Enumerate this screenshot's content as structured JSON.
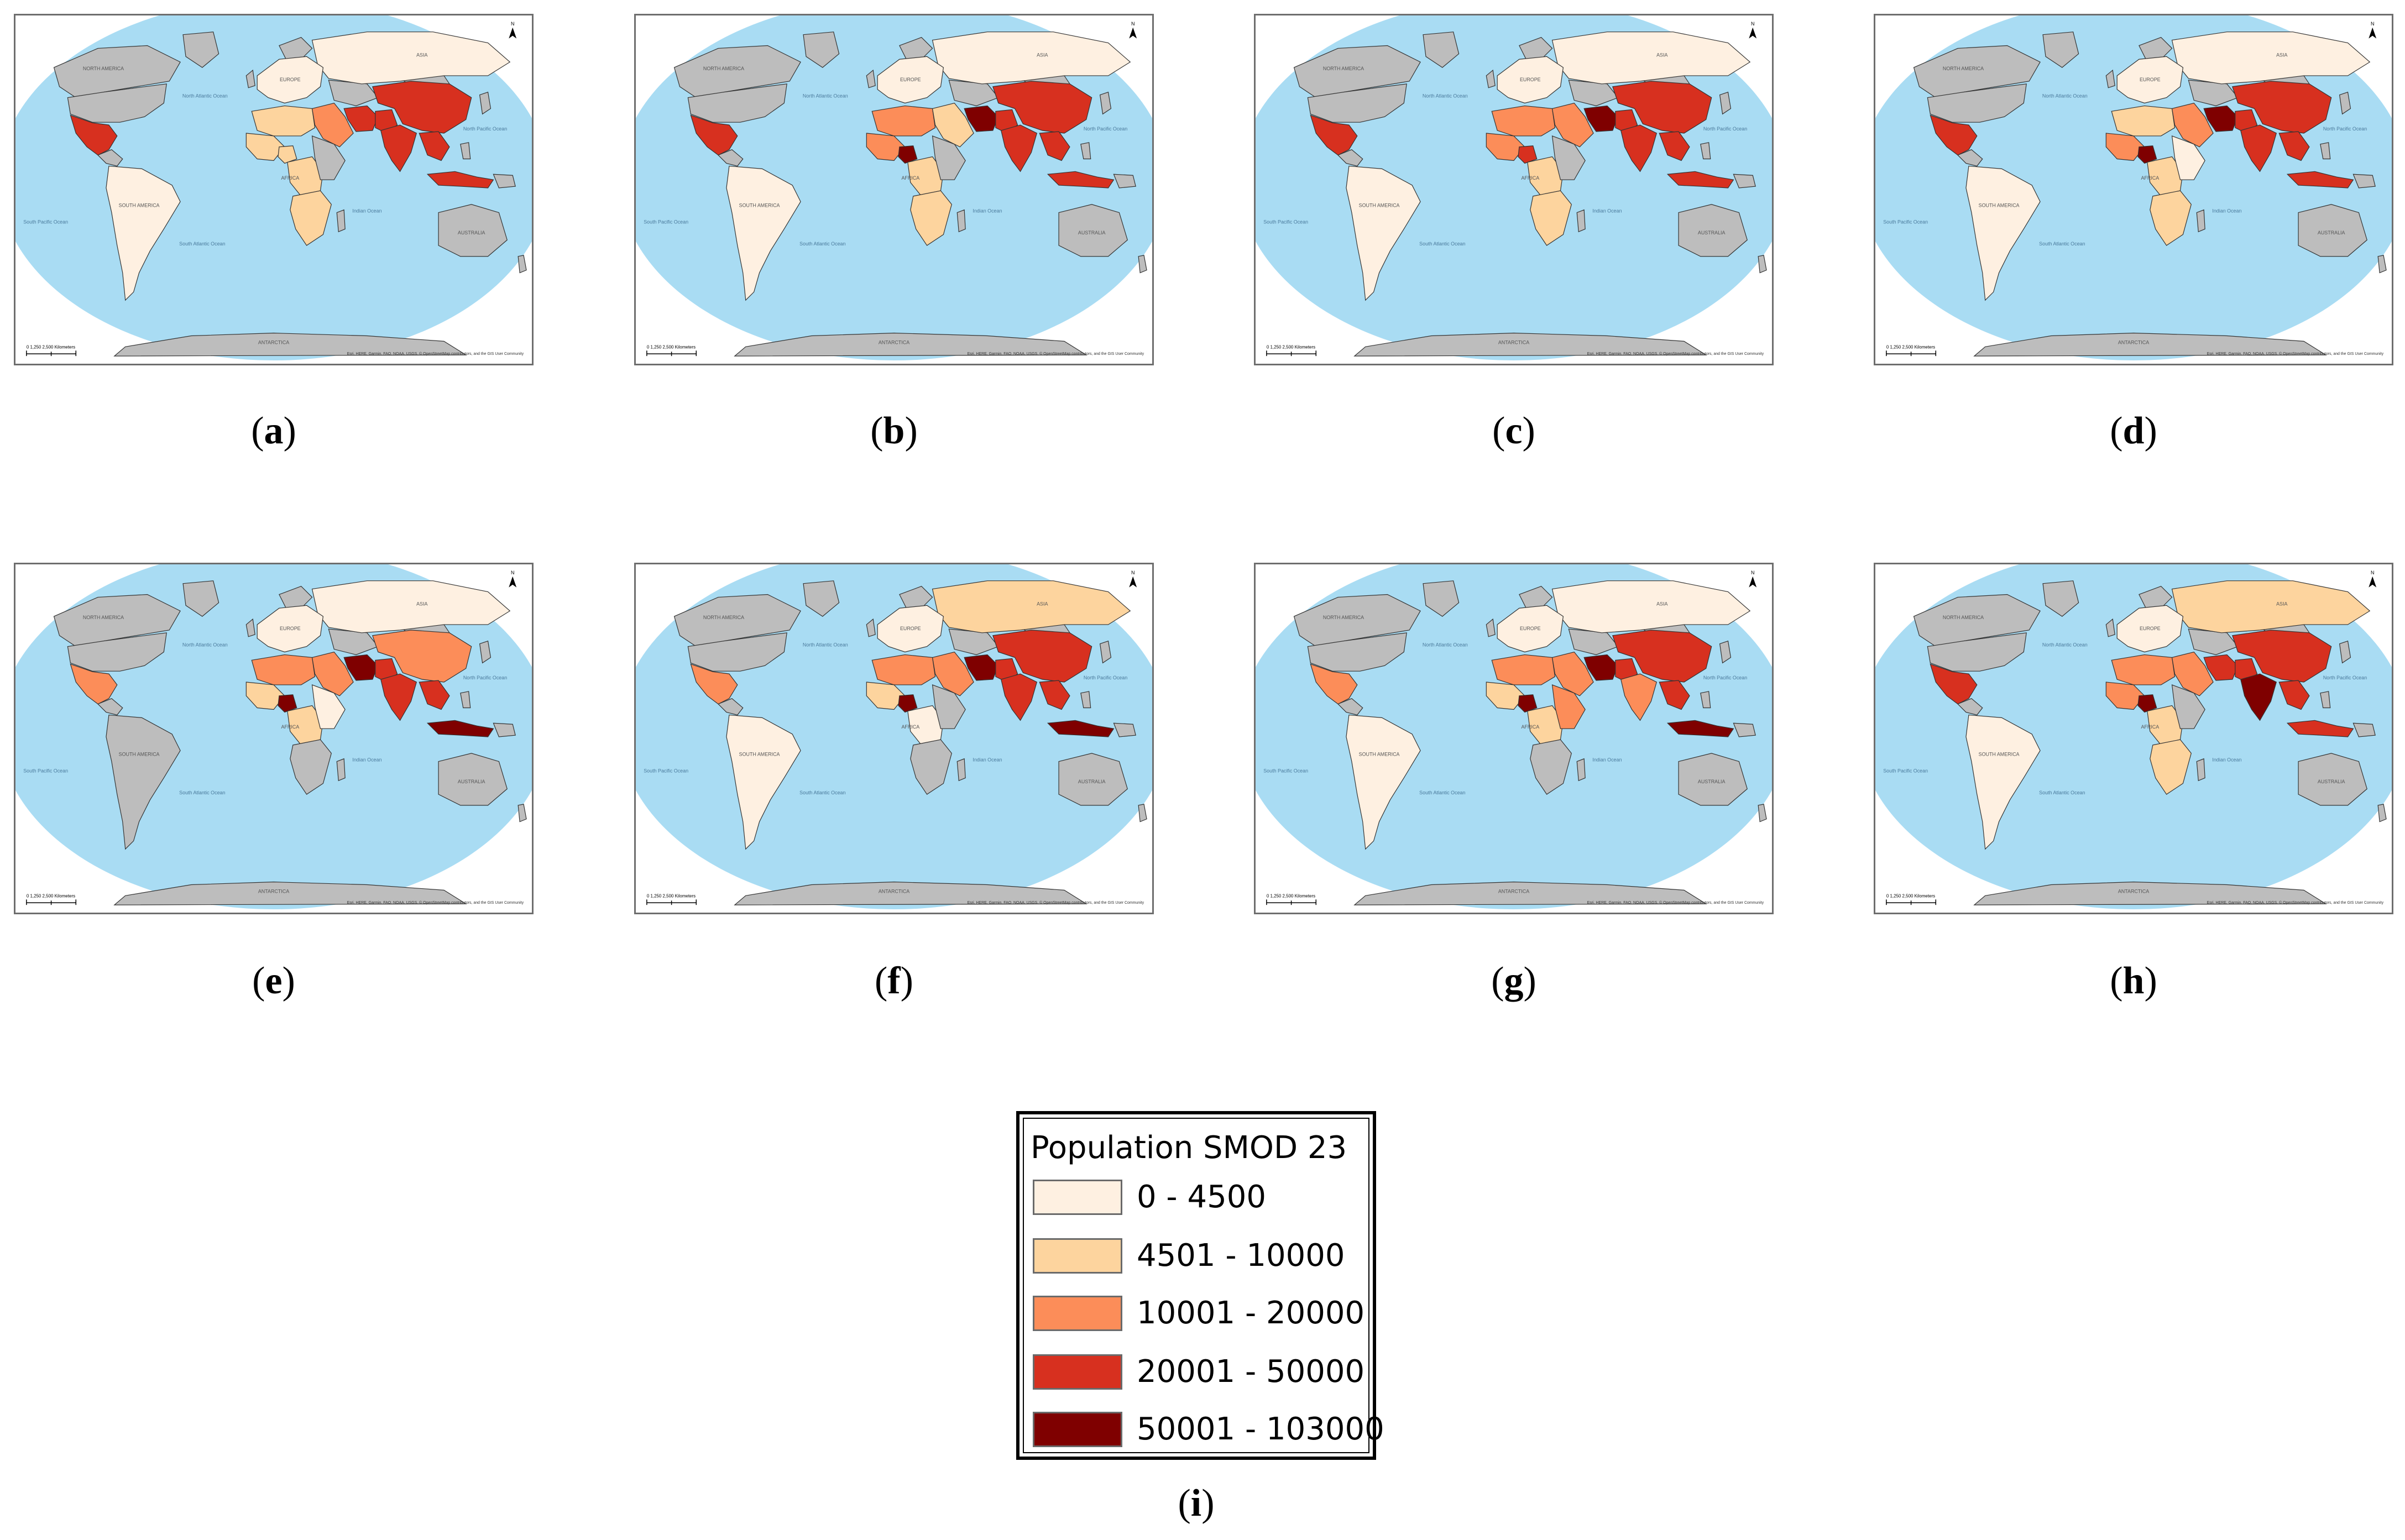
{
  "panels": [
    {
      "letter": "a"
    },
    {
      "letter": "b"
    },
    {
      "letter": "c"
    },
    {
      "letter": "d"
    },
    {
      "letter": "e"
    },
    {
      "letter": "f"
    },
    {
      "letter": "g"
    },
    {
      "letter": "h"
    }
  ],
  "legend": {
    "title": "Population SMOD 23",
    "caption_letter": "i",
    "classes": [
      {
        "label": "0 - 4500",
        "color": "#fef0e1"
      },
      {
        "label": "4501 - 10000",
        "color": "#fdd49e"
      },
      {
        "label": "10001 - 20000",
        "color": "#fc8d59"
      },
      {
        "label": "20001 - 50000",
        "color": "#d7301f"
      },
      {
        "label": "50001 - 103000",
        "color": "#7f0000"
      }
    ]
  },
  "map_style": {
    "ocean": "#a9dcf3",
    "nodata": "#bdbdbd",
    "border": "#333333"
  },
  "map_labels": {
    "ocean_labels": [
      "North Atlantic Ocean",
      "North Pacific Ocean",
      "South Atlantic Ocean",
      "Indian Ocean",
      "South Pacific Ocean"
    ],
    "region_labels": [
      "NORTH AMERICA",
      "SOUTH AMERICA",
      "EUROPE",
      "AFRICA",
      "ASIA",
      "AUSTRALIA",
      "ANTARCTICA"
    ],
    "credit": "Esri, HERE, Garmin, FAO, NOAA, USGS, © OpenStreetMap contributors, and the GIS User Community",
    "scale_label": "0   1,250   2,500 Kilometers",
    "north": "N"
  }
}
